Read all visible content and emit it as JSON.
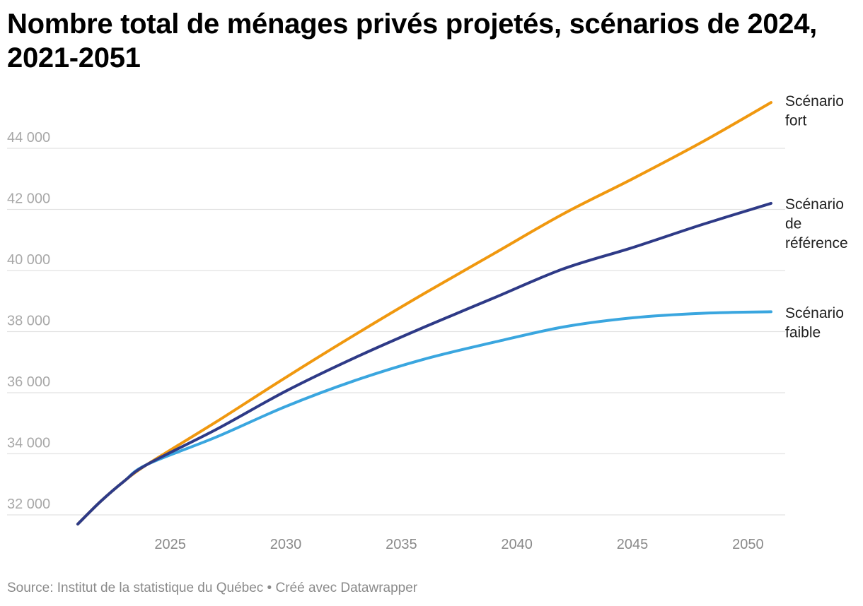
{
  "chart_data": {
    "type": "line",
    "title": "Nombre total de ménages privés projetés, scénarios de 2024, 2021-2051",
    "xlabel": "",
    "ylabel": "",
    "xlim": [
      2021,
      2051
    ],
    "ylim": [
      31600,
      45600
    ],
    "y_ticks": [
      32000,
      34000,
      36000,
      38000,
      40000,
      42000,
      44000
    ],
    "y_tick_labels": [
      "32 000",
      "34 000",
      "36 000",
      "38 000",
      "40 000",
      "42 000",
      "44 000"
    ],
    "x_ticks": [
      2025,
      2030,
      2035,
      2040,
      2045,
      2050
    ],
    "x_tick_labels": [
      "2025",
      "2030",
      "2035",
      "2040",
      "2045",
      "2050"
    ],
    "grid": true,
    "legend": "direct labels at line ends (right)",
    "series": [
      {
        "name": "Scénario fort",
        "label_lines": [
          "Scénario",
          "fort"
        ],
        "color": "#f0980f",
        "points": [
          [
            2021,
            31700
          ],
          [
            2022,
            32450
          ],
          [
            2023,
            33100
          ],
          [
            2024,
            33650
          ],
          [
            2027,
            35050
          ],
          [
            2030,
            36500
          ],
          [
            2033,
            37900
          ],
          [
            2036,
            39250
          ],
          [
            2039,
            40550
          ],
          [
            2042,
            41850
          ],
          [
            2045,
            43000
          ],
          [
            2048,
            44200
          ],
          [
            2051,
            45500
          ]
        ]
      },
      {
        "name": "Scénario de référence",
        "label_lines": [
          "Scénario",
          "de",
          "référence"
        ],
        "color": "#2e3a87",
        "points": [
          [
            2021,
            31700
          ],
          [
            2022,
            32450
          ],
          [
            2023,
            33100
          ],
          [
            2024,
            33650
          ],
          [
            2027,
            34800
          ],
          [
            2030,
            36050
          ],
          [
            2033,
            37150
          ],
          [
            2036,
            38150
          ],
          [
            2039,
            39100
          ],
          [
            2042,
            40050
          ],
          [
            2045,
            40750
          ],
          [
            2048,
            41500
          ],
          [
            2051,
            42200
          ]
        ]
      },
      {
        "name": "Scénario faible",
        "label_lines": [
          "Scénario",
          "faible"
        ],
        "color": "#3aa6df",
        "points": [
          [
            2021,
            31700
          ],
          [
            2022,
            32450
          ],
          [
            2023,
            33100
          ],
          [
            2024,
            33650
          ],
          [
            2027,
            34550
          ],
          [
            2030,
            35550
          ],
          [
            2033,
            36400
          ],
          [
            2036,
            37100
          ],
          [
            2039,
            37650
          ],
          [
            2042,
            38150
          ],
          [
            2045,
            38450
          ],
          [
            2048,
            38600
          ],
          [
            2051,
            38650
          ]
        ]
      }
    ]
  },
  "footer": {
    "text": "Source: Institut de la statistique du Québec • Créé avec Datawrapper"
  }
}
